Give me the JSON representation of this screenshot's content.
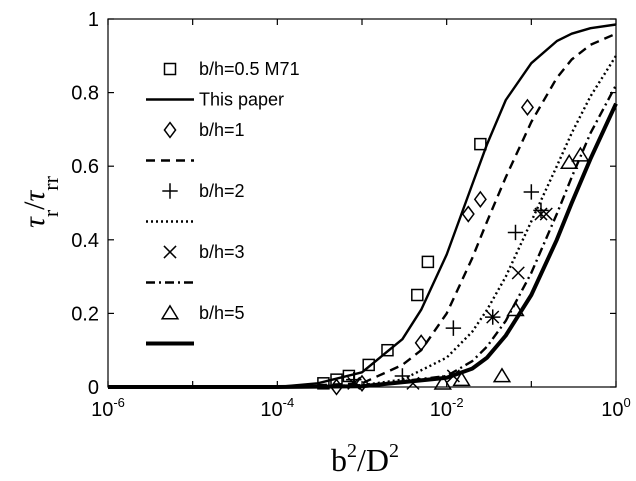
{
  "chart_data": {
    "type": "scatter",
    "title": "",
    "xlabel": {
      "base": "b",
      "sup1": "2",
      "mid": "/D",
      "sup2": "2"
    },
    "ylabel": {
      "tau1": "τ",
      "sub1": "r",
      "slash": "/",
      "tau2": "τ",
      "sub2": "rr"
    },
    "x_scale": "log",
    "xlim": [
      1e-06,
      1
    ],
    "ylim": [
      0,
      1
    ],
    "x_ticks": [
      {
        "base": "10",
        "exp": "-6",
        "value": 1e-06
      },
      {
        "base": "10",
        "exp": "-4",
        "value": 0.0001
      },
      {
        "base": "10",
        "exp": "-2",
        "value": 0.01
      },
      {
        "base": "10",
        "exp": "0",
        "value": 1
      }
    ],
    "y_ticks": [
      {
        "label": "0",
        "value": 0
      },
      {
        "label": "0.2",
        "value": 0.2
      },
      {
        "label": "0.4",
        "value": 0.4
      },
      {
        "label": "0.6",
        "value": 0.6
      },
      {
        "label": "0.8",
        "value": 0.8
      },
      {
        "label": "1",
        "value": 1
      }
    ],
    "grid": false,
    "legend_position": "top-left",
    "legend": [
      {
        "label": "b/h=0.5 M71",
        "kind": "marker",
        "marker": "square"
      },
      {
        "label": "This paper",
        "kind": "line",
        "dash": "solid",
        "weight": "normal"
      },
      {
        "label": "b/h=1",
        "kind": "marker",
        "marker": "diamond"
      },
      {
        "label": "",
        "kind": "line",
        "dash": "dashed",
        "weight": "normal"
      },
      {
        "label": "b/h=2",
        "kind": "marker",
        "marker": "plus"
      },
      {
        "label": "",
        "kind": "line",
        "dash": "dotted",
        "weight": "normal"
      },
      {
        "label": "b/h=3",
        "kind": "marker",
        "marker": "cross"
      },
      {
        "label": "",
        "kind": "line",
        "dash": "dashdot",
        "weight": "normal"
      },
      {
        "label": "b/h=5",
        "kind": "marker",
        "marker": "triangle"
      },
      {
        "label": "",
        "kind": "line",
        "dash": "solid",
        "weight": "thick"
      }
    ],
    "curves": [
      {
        "name": "This paper",
        "dash": "solid",
        "weight": "normal",
        "x": [
          1e-06,
          0.0001,
          0.0003,
          0.001,
          0.003,
          0.005,
          0.01,
          0.02,
          0.03,
          0.05,
          0.1,
          0.2,
          0.3,
          0.5,
          1
        ],
        "y": [
          0,
          0.0,
          0.01,
          0.04,
          0.13,
          0.21,
          0.36,
          0.55,
          0.66,
          0.78,
          0.88,
          0.94,
          0.96,
          0.975,
          0.985
        ]
      },
      {
        "dash": "dashed",
        "weight": "normal",
        "x": [
          1e-06,
          0.0001,
          0.001,
          0.003,
          0.005,
          0.01,
          0.02,
          0.03,
          0.05,
          0.1,
          0.2,
          0.3,
          0.5,
          1
        ],
        "y": [
          0,
          0,
          0.01,
          0.06,
          0.1,
          0.2,
          0.35,
          0.45,
          0.57,
          0.72,
          0.84,
          0.89,
          0.93,
          0.96
        ]
      },
      {
        "dash": "dotted",
        "weight": "normal",
        "x": [
          1e-06,
          0.0001,
          0.001,
          0.003,
          0.01,
          0.02,
          0.03,
          0.05,
          0.1,
          0.2,
          0.3,
          0.5,
          1
        ],
        "y": [
          0,
          0,
          0.005,
          0.02,
          0.08,
          0.15,
          0.21,
          0.3,
          0.45,
          0.6,
          0.69,
          0.79,
          0.9
        ]
      },
      {
        "dash": "dashdot",
        "weight": "normal",
        "x": [
          1e-06,
          0.0001,
          0.001,
          0.01,
          0.02,
          0.03,
          0.05,
          0.1,
          0.2,
          0.3,
          0.5,
          1
        ],
        "y": [
          0,
          0,
          0.003,
          0.03,
          0.07,
          0.11,
          0.18,
          0.31,
          0.47,
          0.57,
          0.69,
          0.82
        ]
      },
      {
        "dash": "solid",
        "weight": "thick",
        "x": [
          1e-06,
          0.0001,
          0.001,
          0.01,
          0.02,
          0.03,
          0.05,
          0.1,
          0.2,
          0.3,
          0.5,
          1
        ],
        "y": [
          0,
          0,
          0.002,
          0.025,
          0.05,
          0.08,
          0.14,
          0.25,
          0.4,
          0.5,
          0.62,
          0.77
        ]
      }
    ],
    "series": [
      {
        "name": "b/h=0.5 M71",
        "marker": "square",
        "x": [
          0.00035,
          0.0005,
          0.0007,
          0.0012,
          0.002,
          0.0045,
          0.006,
          0.025
        ],
        "y": [
          0.01,
          0.02,
          0.03,
          0.06,
          0.1,
          0.25,
          0.34,
          0.66
        ]
      },
      {
        "name": "b/h=1",
        "marker": "diamond",
        "x": [
          0.0005,
          0.001,
          0.005,
          0.018,
          0.025,
          0.09
        ],
        "y": [
          0.0,
          0.01,
          0.12,
          0.47,
          0.51,
          0.76
        ]
      },
      {
        "name": "b/h=2",
        "marker": "plus",
        "x": [
          0.0008,
          0.003,
          0.012,
          0.035,
          0.065,
          0.1,
          0.13
        ],
        "y": [
          0.02,
          0.03,
          0.16,
          0.19,
          0.42,
          0.53,
          0.48
        ]
      },
      {
        "name": "b/h=3",
        "marker": "cross",
        "x": [
          0.0008,
          0.004,
          0.012,
          0.035,
          0.07,
          0.13,
          0.15
        ],
        "y": [
          0.01,
          0.01,
          0.03,
          0.19,
          0.31,
          0.47,
          0.47
        ]
      },
      {
        "name": "b/h=5",
        "marker": "triangle",
        "x": [
          0.009,
          0.015,
          0.045,
          0.065,
          0.28,
          0.38
        ],
        "y": [
          0.01,
          0.02,
          0.03,
          0.21,
          0.61,
          0.63
        ]
      }
    ]
  }
}
